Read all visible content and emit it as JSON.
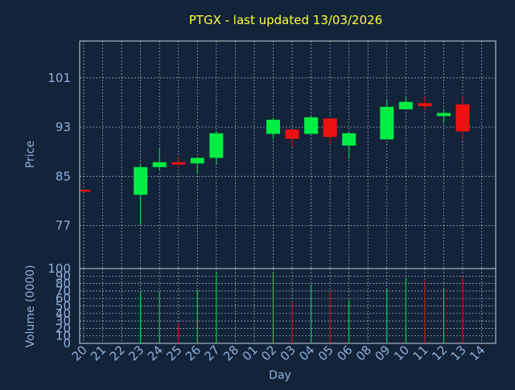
{
  "chart_data": {
    "type": "candlestick",
    "title": "PTGX - last updated 13/03/2026",
    "colors": {
      "background": "#13233a",
      "title": "#ffff33",
      "axis_text": "#8fb0d6",
      "up": "#00ee44",
      "down": "#ee1111",
      "grid": "#d0d8e0"
    },
    "x_label": "Day",
    "days": [
      "20",
      "21",
      "22",
      "23",
      "24",
      "25",
      "26",
      "27",
      "28",
      "01",
      "02",
      "03",
      "04",
      "05",
      "06",
      "08",
      "09",
      "10",
      "11",
      "12",
      "13",
      "14"
    ],
    "price": {
      "ylabel": "Price",
      "ylim": [
        70,
        107
      ],
      "ticks": [
        77,
        85,
        93,
        101
      ],
      "candles": [
        {
          "day": "20",
          "open": 82.8,
          "high": 82.9,
          "low": 82.5,
          "close": 82.5
        },
        {
          "day": "23",
          "open": 82.0,
          "high": 87.0,
          "low": 77.2,
          "close": 86.5
        },
        {
          "day": "24",
          "open": 86.5,
          "high": 89.5,
          "low": 86.0,
          "close": 87.3
        },
        {
          "day": "25",
          "open": 87.3,
          "high": 88.3,
          "low": 86.3,
          "close": 86.9
        },
        {
          "day": "26",
          "open": 87.1,
          "high": 88.1,
          "low": 85.4,
          "close": 88.0
        },
        {
          "day": "27",
          "open": 88.0,
          "high": 92.3,
          "low": 87.0,
          "close": 92.0
        },
        {
          "day": "02",
          "open": 91.9,
          "high": 94.5,
          "low": 91.0,
          "close": 94.2
        },
        {
          "day": "03",
          "open": 92.6,
          "high": 92.7,
          "low": 89.8,
          "close": 91.1
        },
        {
          "day": "04",
          "open": 91.9,
          "high": 94.9,
          "low": 91.9,
          "close": 94.6
        },
        {
          "day": "05",
          "open": 94.4,
          "high": 94.5,
          "low": 90.2,
          "close": 91.4
        },
        {
          "day": "06",
          "open": 90.0,
          "high": 92.2,
          "low": 87.8,
          "close": 92.0
        },
        {
          "day": "09",
          "open": 91.0,
          "high": 97.3,
          "low": 91.0,
          "close": 96.3
        },
        {
          "day": "10",
          "open": 95.9,
          "high": 97.9,
          "low": 95.9,
          "close": 97.1
        },
        {
          "day": "11",
          "open": 96.9,
          "high": 98.0,
          "low": 95.9,
          "close": 96.4
        },
        {
          "day": "12",
          "open": 94.8,
          "high": 95.7,
          "low": 93.6,
          "close": 95.3
        },
        {
          "day": "13",
          "open": 96.7,
          "high": 98.0,
          "low": 90.9,
          "close": 92.3
        }
      ]
    },
    "volume": {
      "ylabel": "Volume (0000)",
      "ylim": [
        0,
        100
      ],
      "ticks": [
        0,
        10,
        20,
        30,
        40,
        50,
        60,
        70,
        80,
        90,
        100
      ],
      "bars": [
        {
          "day": "23",
          "value": 70,
          "direction": "up"
        },
        {
          "day": "24",
          "value": 69,
          "direction": "up"
        },
        {
          "day": "25",
          "value": 28,
          "direction": "down"
        },
        {
          "day": "26",
          "value": 71,
          "direction": "up"
        },
        {
          "day": "27",
          "value": 96,
          "direction": "up"
        },
        {
          "day": "02",
          "value": 95,
          "direction": "up"
        },
        {
          "day": "03",
          "value": 56,
          "direction": "down"
        },
        {
          "day": "04",
          "value": 79,
          "direction": "up"
        },
        {
          "day": "05",
          "value": 70,
          "direction": "down"
        },
        {
          "day": "06",
          "value": 58,
          "direction": "up"
        },
        {
          "day": "09",
          "value": 73,
          "direction": "up"
        },
        {
          "day": "10",
          "value": 88,
          "direction": "up"
        },
        {
          "day": "11",
          "value": 84,
          "direction": "down"
        },
        {
          "day": "12",
          "value": 74,
          "direction": "up"
        },
        {
          "day": "13",
          "value": 90,
          "direction": "down"
        }
      ]
    }
  }
}
